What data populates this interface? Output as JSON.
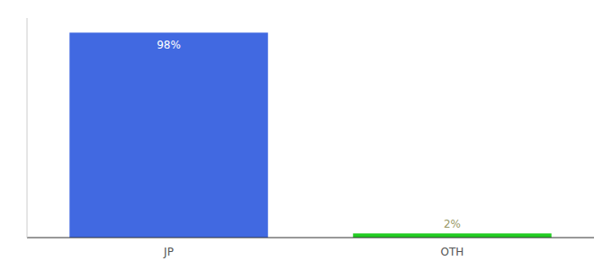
{
  "chart_data": {
    "type": "bar",
    "categories": [
      "JP",
      "OTH"
    ],
    "values": [
      98,
      2
    ],
    "value_labels": [
      "98%",
      "2%"
    ],
    "colors": [
      "#4169e1",
      "#22cc22"
    ],
    "ylim": [
      0,
      105
    ],
    "grid": false,
    "data_labels": true,
    "tick_labels": "x"
  }
}
